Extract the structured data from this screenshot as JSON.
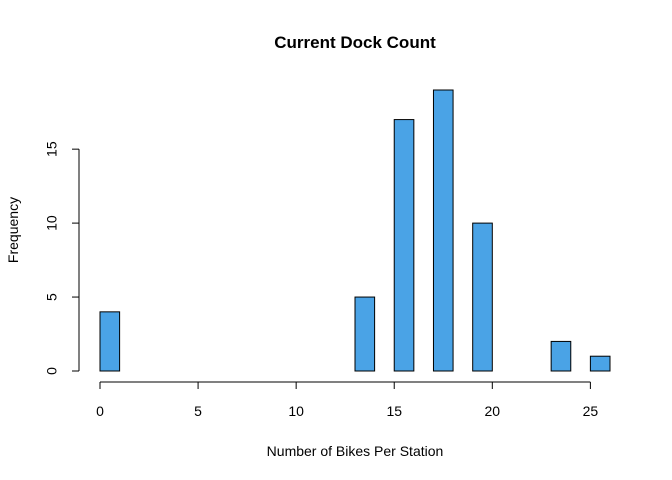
{
  "chart_data": {
    "type": "bar",
    "title": "Current Dock Count",
    "xlabel": "Number of Bikes Per Station",
    "ylabel": "Frequency",
    "bin_width": 1,
    "bins": [
      {
        "start": 0,
        "end": 1,
        "count": 4
      },
      {
        "start": 1,
        "end": 2,
        "count": 0
      },
      {
        "start": 2,
        "end": 3,
        "count": 0
      },
      {
        "start": 3,
        "end": 4,
        "count": 0
      },
      {
        "start": 4,
        "end": 5,
        "count": 0
      },
      {
        "start": 5,
        "end": 6,
        "count": 0
      },
      {
        "start": 6,
        "end": 7,
        "count": 0
      },
      {
        "start": 7,
        "end": 8,
        "count": 0
      },
      {
        "start": 8,
        "end": 9,
        "count": 0
      },
      {
        "start": 9,
        "end": 10,
        "count": 0
      },
      {
        "start": 10,
        "end": 11,
        "count": 0
      },
      {
        "start": 11,
        "end": 12,
        "count": 0
      },
      {
        "start": 12,
        "end": 13,
        "count": 0
      },
      {
        "start": 13,
        "end": 14,
        "count": 5
      },
      {
        "start": 14,
        "end": 15,
        "count": 0
      },
      {
        "start": 15,
        "end": 16,
        "count": 17
      },
      {
        "start": 16,
        "end": 17,
        "count": 0
      },
      {
        "start": 17,
        "end": 18,
        "count": 19
      },
      {
        "start": 18,
        "end": 19,
        "count": 0
      },
      {
        "start": 19,
        "end": 20,
        "count": 10
      },
      {
        "start": 20,
        "end": 21,
        "count": 0
      },
      {
        "start": 21,
        "end": 22,
        "count": 0
      },
      {
        "start": 22,
        "end": 23,
        "count": 0
      },
      {
        "start": 23,
        "end": 24,
        "count": 2
      },
      {
        "start": 24,
        "end": 25,
        "count": 0
      },
      {
        "start": 25,
        "end": 26,
        "count": 1
      }
    ],
    "xlim": [
      0,
      26
    ],
    "ylim": [
      0,
      19
    ],
    "x_ticks": [
      0,
      5,
      10,
      15,
      20,
      25
    ],
    "y_ticks": [
      0,
      5,
      10,
      15
    ],
    "grid": false,
    "bar_color": "#4AA3E6"
  }
}
